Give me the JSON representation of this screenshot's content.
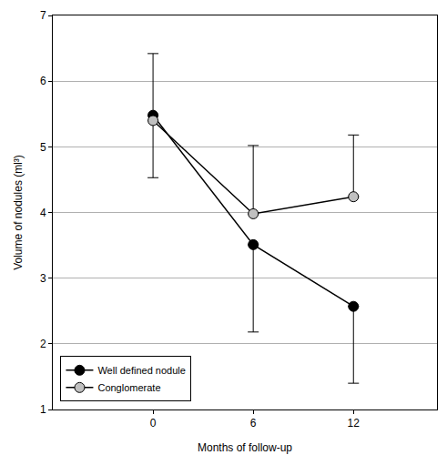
{
  "chart_data": {
    "type": "line",
    "x_label": "Months of follow-up",
    "y_label": "Volume of nodules (ml³)",
    "x": [
      0,
      6,
      12
    ],
    "series": [
      {
        "name": "Well defined nodule",
        "color": "#000000",
        "marker": "circle",
        "values": [
          5.48,
          3.51,
          2.57
        ],
        "error_minus": [
          0.95,
          1.33,
          1.17
        ]
      },
      {
        "name": "Conglomerate",
        "color": "#c0c0c0",
        "marker": "circle",
        "values": [
          5.4,
          3.98,
          4.24
        ],
        "error_plus": [
          1.02,
          1.04,
          0.94
        ]
      }
    ],
    "xlim": [
      -6,
      17
    ],
    "xticks": [
      0,
      6,
      12
    ],
    "ylim": [
      1,
      7
    ],
    "yticks": [
      1,
      2,
      3,
      4,
      5,
      6,
      7
    ],
    "grid": true,
    "legend": "bottom-left"
  }
}
